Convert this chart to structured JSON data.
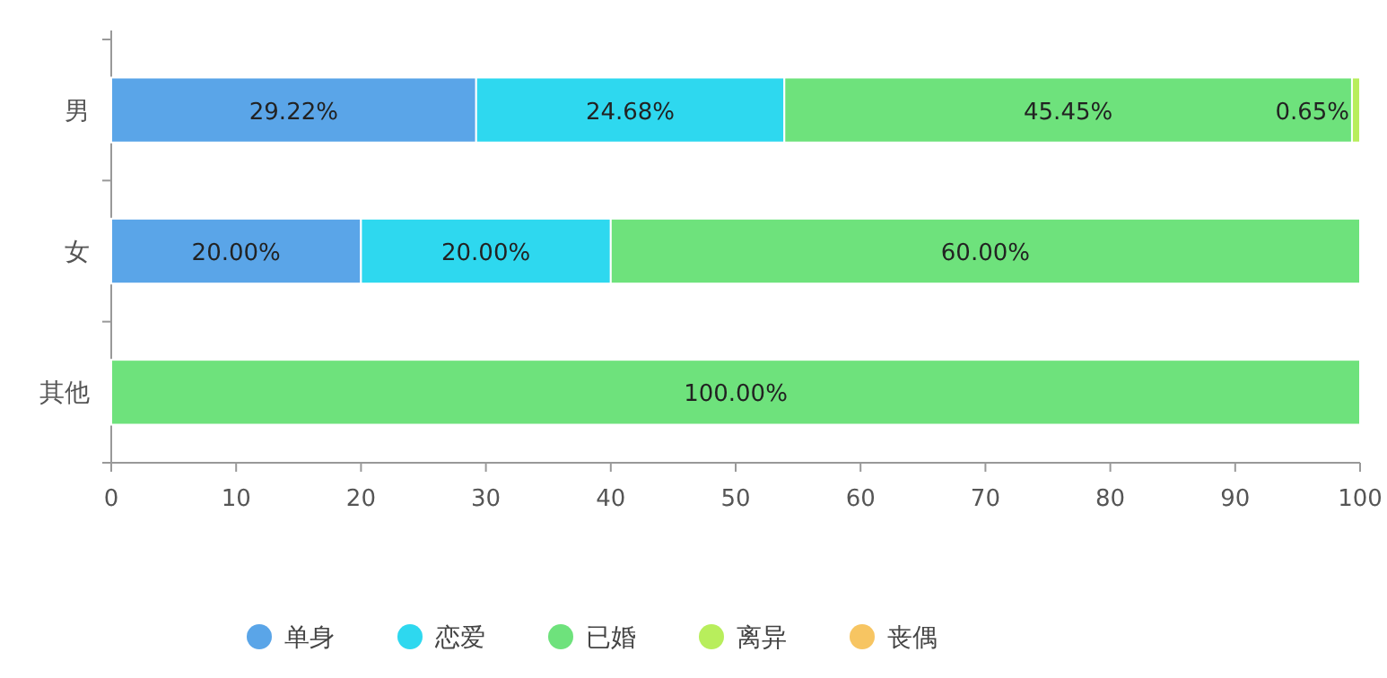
{
  "chart_data": {
    "type": "bar",
    "orientation": "horizontal",
    "stacked": true,
    "categories": [
      "男",
      "女",
      "其他"
    ],
    "xlim": [
      0,
      100
    ],
    "xticks": [
      0,
      10,
      20,
      30,
      40,
      50,
      60,
      70,
      80,
      90,
      100
    ],
    "grid": false,
    "legend": "bottom",
    "series": [
      {
        "name": "单身",
        "color": "#5aa5e8",
        "values": [
          29.22,
          20,
          0
        ],
        "value_labels": [
          "29.22%",
          "20.00%",
          null
        ]
      },
      {
        "name": "恋爱",
        "color": "#2ed8ef",
        "values": [
          24.68,
          20,
          0
        ],
        "value_labels": [
          "24.68%",
          "20.00%",
          null
        ]
      },
      {
        "name": "已婚",
        "color": "#6ee27c",
        "values": [
          45.45,
          60,
          100
        ],
        "value_labels": [
          "45.45%",
          "60.00%",
          "100.00%"
        ]
      },
      {
        "name": "离异",
        "color": "#b8ee5c",
        "values": [
          0.65,
          0,
          0
        ],
        "value_labels": [
          "0.65%",
          null,
          null
        ]
      },
      {
        "name": "丧偶",
        "color": "#f7c562",
        "values": [
          0,
          0,
          0
        ],
        "value_labels": [
          null,
          null,
          null
        ]
      }
    ]
  }
}
